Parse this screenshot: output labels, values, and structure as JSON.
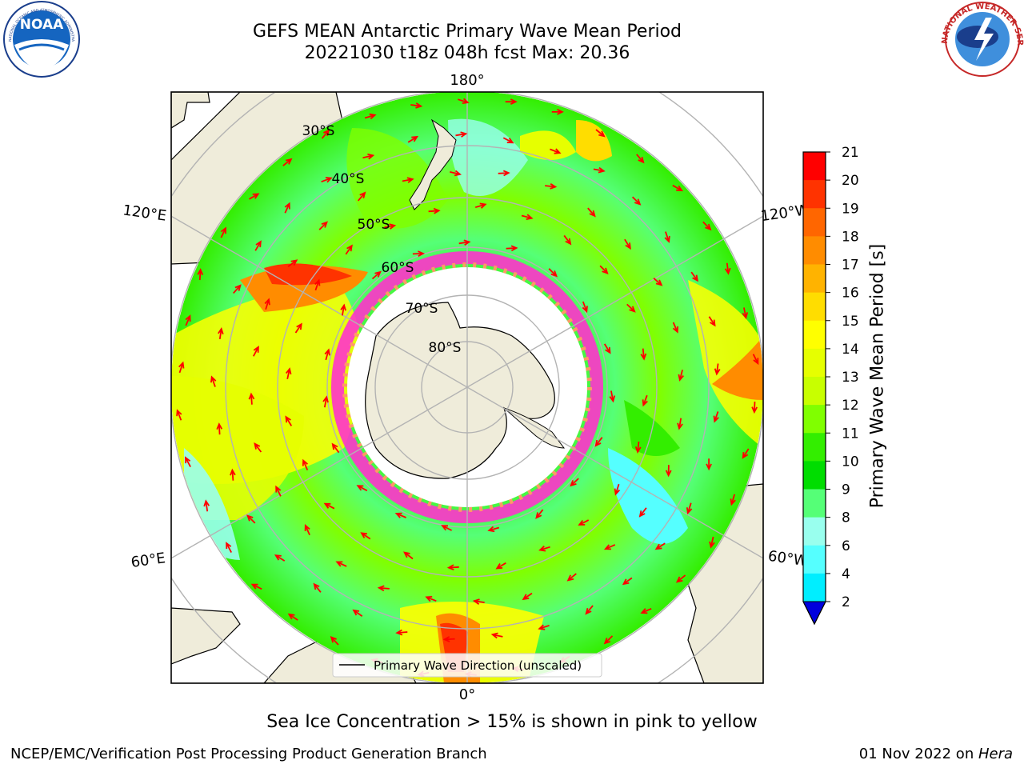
{
  "title_line1": "GEFS MEAN Antarctic Primary Wave Mean Period",
  "title_line2": "20221030 t18z 048h fcst   Max: 20.36",
  "logos": {
    "left": {
      "name": "NOAA",
      "text": "NOAA",
      "ring_text": "NATIONAL OCEANIC AND ATMOSPHERIC ADMINISTRATION · U.S. DEPARTMENT OF COMMERCE"
    },
    "right": {
      "name": "National Weather Service",
      "ring_text": "NATIONAL WEATHER SERVICE"
    }
  },
  "map": {
    "projection": "south polar stereographic",
    "lon_labels": {
      "top": "180°",
      "bottom": "0°",
      "upper_left": "120°E",
      "upper_right": "120°W",
      "lower_left": "60°E",
      "lower_right": "60°W"
    },
    "lat_labels": [
      "30°S",
      "40°S",
      "50°S",
      "60°S",
      "70°S",
      "80°S"
    ],
    "legend": "Primary Wave Direction (unscaled)",
    "colors": {
      "land": "#efecda",
      "arrow": "#ff0000",
      "grid": "#b3b3b3",
      "sea_ice": [
        "#ff33cc",
        "#ff9966",
        "#ffcc66"
      ]
    }
  },
  "colorbar": {
    "label": "Primary Wave Mean Period [s]",
    "ticks": [
      "21",
      "20",
      "19",
      "18",
      "17",
      "16",
      "15",
      "14",
      "13",
      "12",
      "11",
      "10",
      "9",
      "8",
      "6",
      "4",
      "2"
    ],
    "colors": [
      "#ff0000",
      "#ff3300",
      "#ff6600",
      "#ff8c00",
      "#ffb300",
      "#ffdd00",
      "#ffff00",
      "#e6ff00",
      "#c8ff00",
      "#80ff00",
      "#33ee00",
      "#00dd00",
      "#55ff77",
      "#99ffee",
      "#55ffff",
      "#00eeff",
      "#0099ff",
      "#0044ff"
    ],
    "extend_color": "#0000dd"
  },
  "ice_note": "Sea Ice Concentration > 15% is shown in pink to yellow",
  "footer_left": "NCEP/EMC/Verification Post Processing Product Generation Branch",
  "footer_right_date": "01 Nov 2022 on ",
  "footer_right_machine": "Hera"
}
